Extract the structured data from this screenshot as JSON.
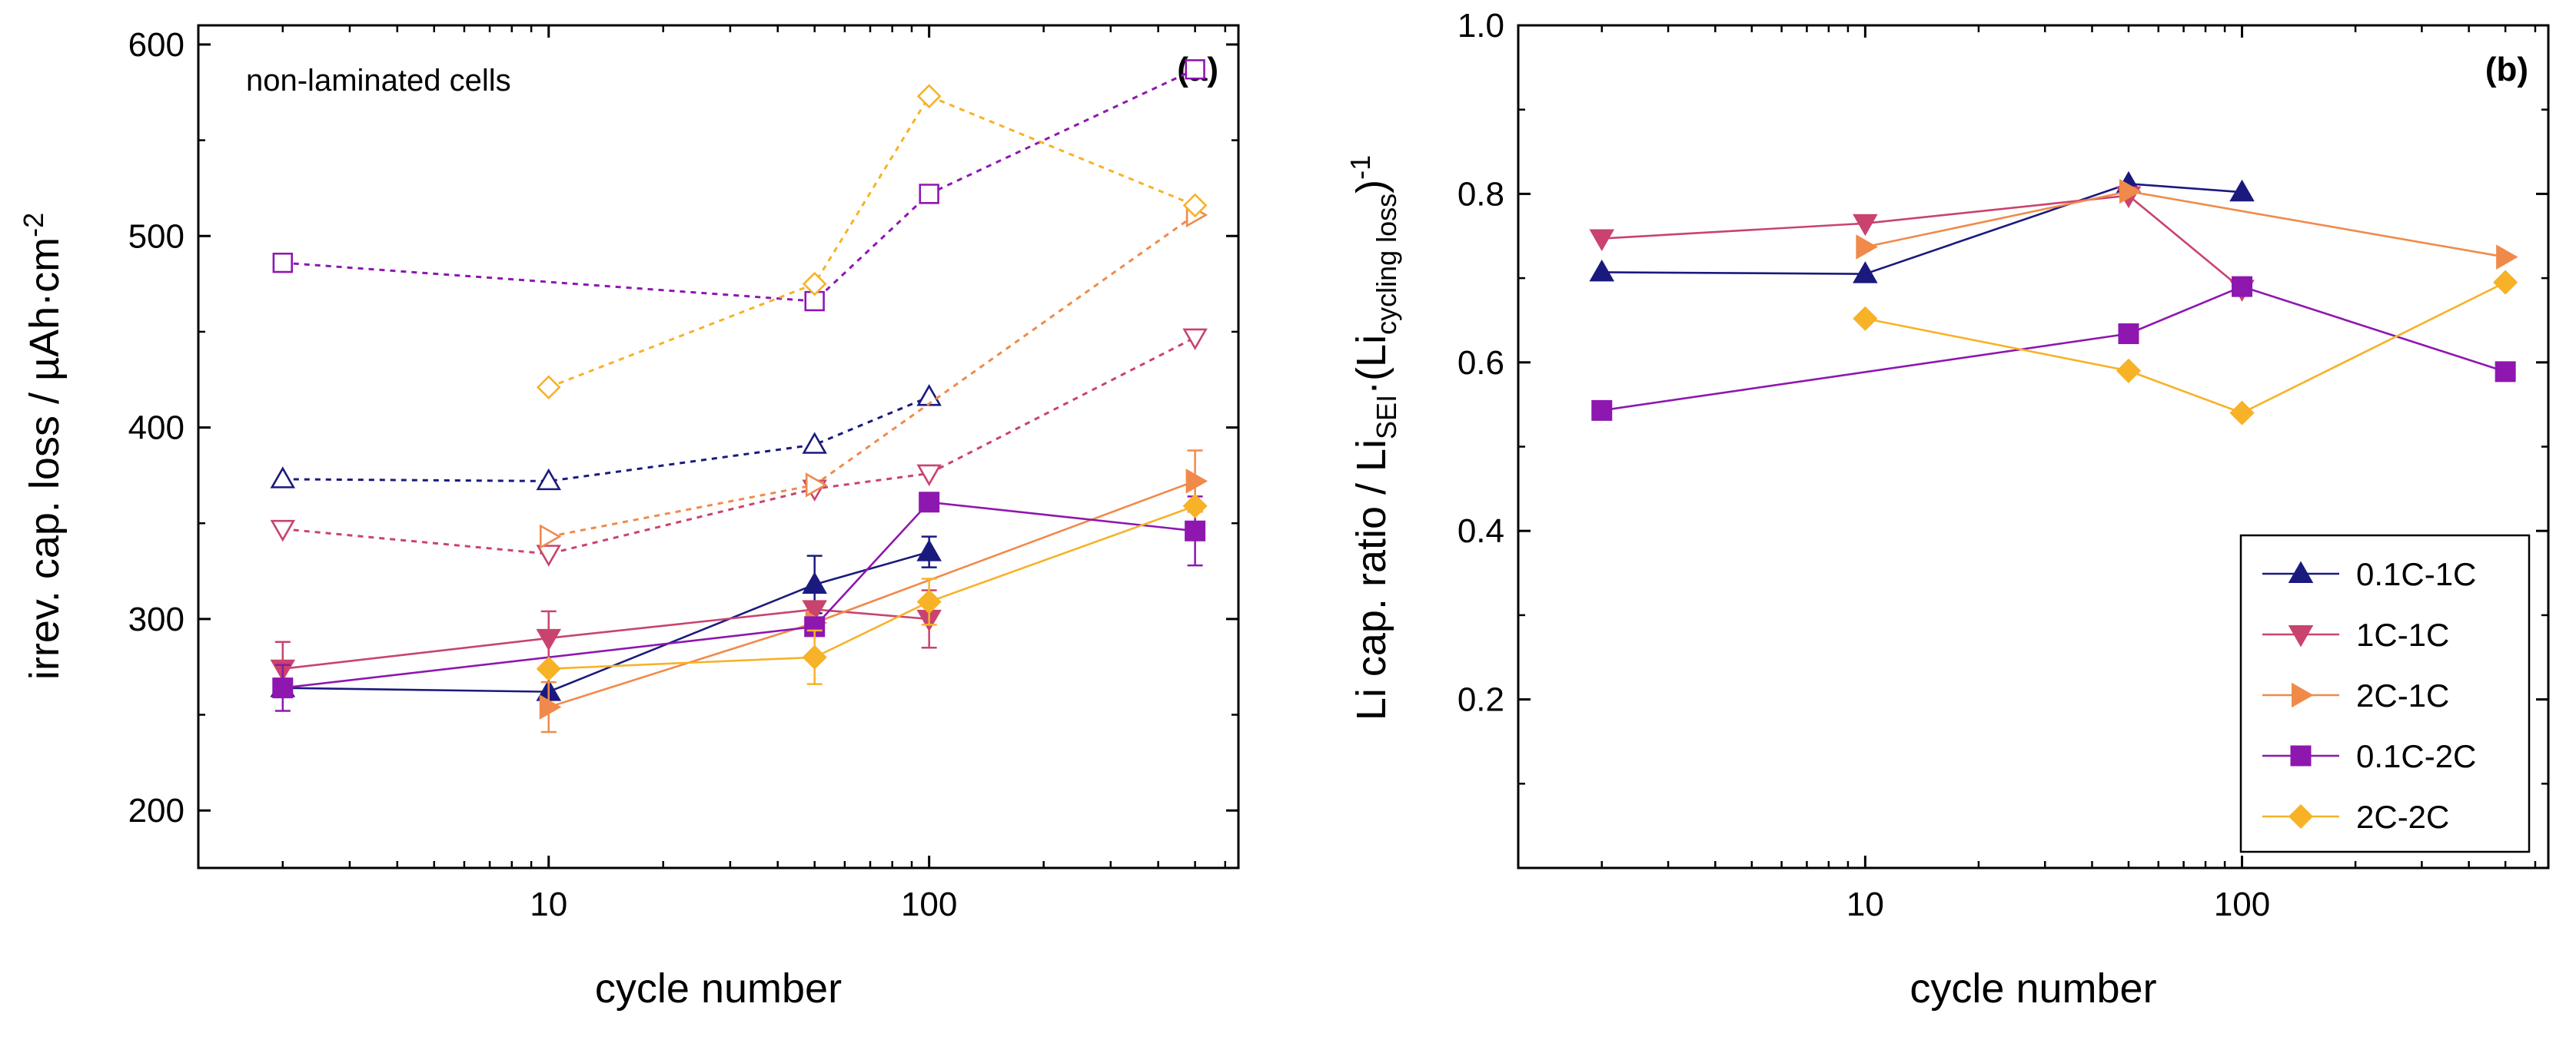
{
  "chart_data": [
    {
      "panel": "(a)",
      "type": "line",
      "x_scale": "log",
      "xlabel": "cycle number",
      "ylabel": "irrev. cap. loss / µAh·cm",
      "ylabel_sup": "-2",
      "annotation": "non-laminated cells",
      "xlim": [
        1.2,
        650
      ],
      "ylim": [
        170,
        610
      ],
      "xticks": [
        10,
        100
      ],
      "xtick_labels": [
        "10",
        "100"
      ],
      "yticks": [
        200,
        300,
        400,
        500,
        600
      ],
      "ytick_labels": [
        "200",
        "300",
        "400",
        "500",
        "600"
      ],
      "series": [
        {
          "name": "0.1C-1C",
          "color": "#1a1a7e",
          "marker": "triangle-up",
          "x": [
            2,
            10,
            50,
            100
          ],
          "y": [
            264,
            262,
            318,
            335
          ],
          "err": [
            0,
            0,
            15,
            8
          ]
        },
        {
          "name": "1C-1C",
          "color": "#c9436e",
          "marker": "triangle-down",
          "x": [
            2,
            10,
            50,
            100
          ],
          "y": [
            274,
            290,
            305,
            300
          ],
          "err": [
            14,
            14,
            0,
            15
          ]
        },
        {
          "name": "2C-1C",
          "color": "#f08a4b",
          "marker": "triangle-right",
          "x": [
            10,
            50,
            500
          ],
          "y": [
            254,
            298,
            372
          ],
          "err": [
            13,
            0,
            16
          ]
        },
        {
          "name": "0.1C-2C",
          "color": "#8e17b0",
          "marker": "square",
          "x": [
            2,
            50,
            100,
            500
          ],
          "y": [
            264,
            296,
            361,
            346
          ],
          "err": [
            12,
            0,
            0,
            18
          ]
        },
        {
          "name": "2C-2C",
          "color": "#f7b228",
          "marker": "diamond",
          "x": [
            10,
            50,
            100,
            500
          ],
          "y": [
            274,
            280,
            309,
            359
          ],
          "err": [
            0,
            14,
            12,
            0
          ]
        }
      ],
      "dashed_series": [
        {
          "name": "0.1C-1C",
          "color": "#1a1a7e",
          "marker": "triangle-up",
          "x": [
            2,
            10,
            50,
            100
          ],
          "y": [
            373,
            372,
            391,
            416
          ]
        },
        {
          "name": "1C-1C",
          "color": "#c9436e",
          "marker": "triangle-down",
          "x": [
            2,
            10,
            50,
            100,
            500
          ],
          "y": [
            347,
            334,
            368,
            376,
            447
          ]
        },
        {
          "name": "2C-1C",
          "color": "#f08a4b",
          "marker": "triangle-right",
          "x": [
            10,
            50,
            500
          ],
          "y": [
            343,
            370,
            511
          ]
        },
        {
          "name": "0.1C-2C",
          "color": "#8e17b0",
          "marker": "square",
          "x": [
            2,
            50,
            100,
            500
          ],
          "y": [
            486,
            466,
            522,
            587
          ]
        },
        {
          "name": "2C-2C",
          "color": "#f7b228",
          "marker": "diamond",
          "x": [
            10,
            50,
            100,
            500
          ],
          "y": [
            421,
            475,
            573,
            516
          ]
        }
      ]
    },
    {
      "panel": "(b)",
      "type": "line",
      "x_scale": "log",
      "xlabel": "cycle number",
      "ylabel": "Li cap. ratio / Li",
      "ylabel_sub1": "SEI",
      "ylabel_mid": "·(Li",
      "ylabel_sub2": "cycling loss",
      "ylabel_end": ")",
      "ylabel_sup": "-1",
      "xlim": [
        1.2,
        650
      ],
      "ylim": [
        0.0,
        1.0
      ],
      "xticks": [
        10,
        100
      ],
      "xtick_labels": [
        "10",
        "100"
      ],
      "yticks": [
        0.2,
        0.4,
        0.6,
        0.8,
        1.0
      ],
      "ytick_labels": [
        "0.2",
        "0.4",
        "0.6",
        "0.8",
        "1.0"
      ],
      "legend_position": "bottom-right",
      "series": [
        {
          "name": "0.1C-1C",
          "color": "#1a1a7e",
          "marker": "triangle-up",
          "x": [
            2,
            10,
            50,
            100
          ],
          "y": [
            0.707,
            0.705,
            0.812,
            0.802
          ]
        },
        {
          "name": "1C-1C",
          "color": "#c9436e",
          "marker": "triangle-down",
          "x": [
            2,
            10,
            50,
            100
          ],
          "y": [
            0.747,
            0.765,
            0.798,
            0.687
          ]
        },
        {
          "name": "2C-1C",
          "color": "#f08a4b",
          "marker": "triangle-right",
          "x": [
            10,
            50,
            500
          ],
          "y": [
            0.737,
            0.803,
            0.725
          ]
        },
        {
          "name": "0.1C-2C",
          "color": "#8e17b0",
          "marker": "square",
          "x": [
            2,
            50,
            100,
            500
          ],
          "y": [
            0.543,
            0.634,
            0.69,
            0.589
          ]
        },
        {
          "name": "2C-2C",
          "color": "#f7b228",
          "marker": "diamond",
          "x": [
            10,
            50,
            100,
            500
          ],
          "y": [
            0.652,
            0.59,
            0.54,
            0.695
          ]
        }
      ]
    }
  ]
}
